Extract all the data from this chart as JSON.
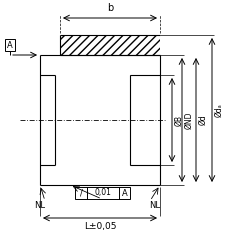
{
  "bg_color": "#ffffff",
  "line_color": "#000000",
  "hatch_color": "#000000",
  "fig_size": [
    2.5,
    2.5
  ],
  "dpi": 100,
  "labels": {
    "b": "b",
    "A_ref": "A",
    "NL_left": "NL",
    "NL_right": "NL",
    "flatness": "/  0,01 A",
    "length": "L±0,05",
    "dB": "ØB",
    "dND": "ØND",
    "dd": "Ød",
    "dda": "Ødₐ"
  }
}
